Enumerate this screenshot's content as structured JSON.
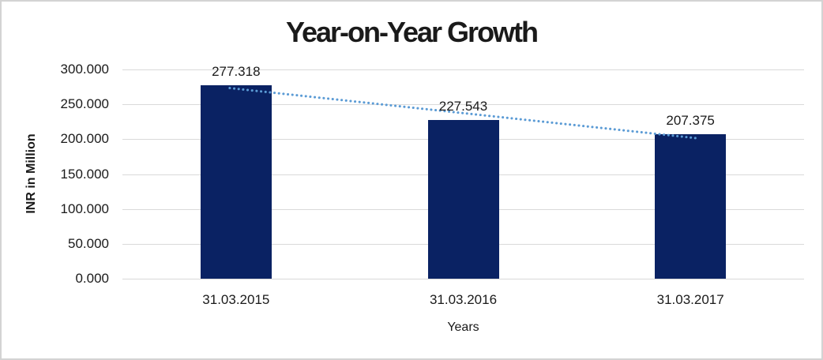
{
  "chart_data": {
    "type": "bar",
    "title": "Year-on-Year Growth",
    "categories": [
      "31.03.2015",
      "31.03.2016",
      "31.03.2017"
    ],
    "values": [
      277.318,
      227.543,
      207.375
    ],
    "data_labels": [
      "277.318",
      "227.543",
      "207.375"
    ],
    "xlabel": "Years",
    "ylabel": "INR in Million",
    "ylim": [
      0,
      300
    ],
    "ytick_step": 50,
    "yticks": [
      {
        "value": 300,
        "label": "300.000"
      },
      {
        "value": 250,
        "label": "250.000"
      },
      {
        "value": 200,
        "label": "200.000"
      },
      {
        "value": 150,
        "label": "150.000"
      },
      {
        "value": 100,
        "label": "100.000"
      },
      {
        "value": 50,
        "label": "50.000"
      },
      {
        "value": 0,
        "label": "0.000"
      }
    ],
    "grid": true,
    "legend": "none",
    "trendline": {
      "type": "linear",
      "style": "dotted"
    },
    "colors": {
      "bar": "#0a2263",
      "trendline": "#5b9bd5",
      "gridline": "#d9d9d9",
      "frame_border": "#d3d3d3",
      "text": "#1a1a1a"
    }
  }
}
